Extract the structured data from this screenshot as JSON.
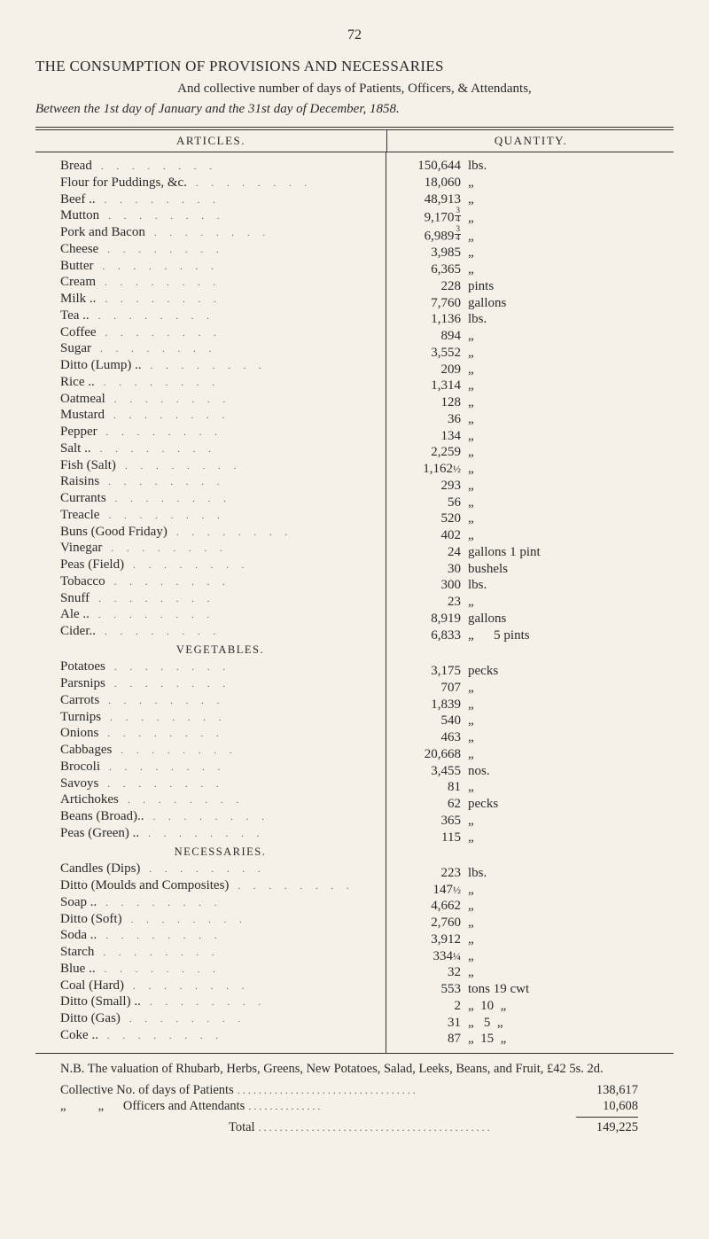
{
  "page_number": "72",
  "title": "THE CONSUMPTION OF PROVISIONS AND NECESSARIES",
  "subtitle1": "And collective number of days of Patients, Officers, & Attendants,",
  "subtitle2": "Between the 1st day of January and the 31st day of December, 1858.",
  "header_articles": "ARTICLES.",
  "header_quantity": "QUANTITY.",
  "sections": [
    {
      "heading": null,
      "rows": [
        {
          "article": "Bread",
          "qty": "150,644",
          "unit": "lbs."
        },
        {
          "article": "Flour for Puddings, &c.",
          "qty": "18,060",
          "unit": "„"
        },
        {
          "article": "Beef ..",
          "qty": "48,913",
          "unit": "„"
        },
        {
          "article": "Mutton",
          "qty": "9,170",
          "qty_frac": "3/4",
          "unit": "„"
        },
        {
          "article": "Pork and Bacon",
          "qty": "6,989",
          "qty_frac": "3/4",
          "unit": "„"
        },
        {
          "article": "Cheese",
          "qty": "3,985",
          "unit": "„"
        },
        {
          "article": "Butter",
          "qty": "6,365",
          "unit": "„"
        },
        {
          "article": "Cream",
          "qty": "228",
          "unit": "pints"
        },
        {
          "article": "Milk ..",
          "qty": "7,760",
          "unit": "gallons"
        },
        {
          "article": "Tea ..",
          "qty": "1,136",
          "unit": "lbs."
        },
        {
          "article": "Coffee",
          "qty": "894",
          "unit": "„"
        },
        {
          "article": "Sugar",
          "qty": "3,552",
          "unit": "„"
        },
        {
          "article": "Ditto (Lump) ..",
          "qty": "209",
          "unit": "„"
        },
        {
          "article": "Rice ..",
          "qty": "1,314",
          "unit": "„"
        },
        {
          "article": "Oatmeal",
          "qty": "128",
          "unit": "„"
        },
        {
          "article": "Mustard",
          "qty": "36",
          "unit": "„"
        },
        {
          "article": "Pepper",
          "qty": "134",
          "unit": "„"
        },
        {
          "article": "Salt ..",
          "qty": "2,259",
          "unit": "„"
        },
        {
          "article": "Fish (Salt)",
          "qty": "1,162",
          "qty_half": "½",
          "unit": "„"
        },
        {
          "article": "Raisins",
          "qty": "293",
          "unit": "„"
        },
        {
          "article": "Currants",
          "qty": "56",
          "unit": "„"
        },
        {
          "article": "Treacle",
          "qty": "520",
          "unit": "„"
        },
        {
          "article": "Buns (Good Friday)",
          "qty": "402",
          "unit": "„"
        },
        {
          "article": "Vinegar",
          "qty": "24",
          "unit": "gallons 1 pint"
        },
        {
          "article": "Peas (Field)",
          "qty": "30",
          "unit": "bushels"
        },
        {
          "article": "Tobacco",
          "qty": "300",
          "unit": "lbs."
        },
        {
          "article": "Snuff",
          "qty": "23",
          "unit": "„"
        },
        {
          "article": "Ale ..",
          "qty": "8,919",
          "unit": "gallons"
        },
        {
          "article": "Cider..",
          "qty": "6,833",
          "unit": "„      5 pints"
        }
      ]
    },
    {
      "heading": "VEGETABLES.",
      "rows": [
        {
          "article": "Potatoes",
          "qty": "3,175",
          "unit": "pecks"
        },
        {
          "article": "Parsnips",
          "qty": "707",
          "unit": "„"
        },
        {
          "article": "Carrots",
          "qty": "1,839",
          "unit": "„"
        },
        {
          "article": "Turnips",
          "qty": "540",
          "unit": "„"
        },
        {
          "article": "Onions",
          "qty": "463",
          "unit": "„"
        },
        {
          "article": "Cabbages",
          "qty": "20,668",
          "unit": "„"
        },
        {
          "article": "Brocoli",
          "qty": "3,455",
          "unit": "nos."
        },
        {
          "article": "Savoys",
          "qty": "81",
          "unit": "„"
        },
        {
          "article": "Artichokes",
          "qty": "62",
          "unit": "pecks"
        },
        {
          "article": "Beans (Broad)..",
          "qty": "365",
          "unit": "„"
        },
        {
          "article": "Peas (Green) ..",
          "qty": "115",
          "unit": "„"
        }
      ]
    },
    {
      "heading": "NECESSARIES.",
      "rows": [
        {
          "article": "Candles (Dips)",
          "qty": "223",
          "unit": "lbs."
        },
        {
          "article": "Ditto (Moulds and Composites)",
          "qty": "147",
          "qty_half": "½",
          "unit": "„"
        },
        {
          "article": "Soap ..",
          "qty": "4,662",
          "unit": "„"
        },
        {
          "article": "Ditto (Soft)",
          "qty": "2,760",
          "unit": "„"
        },
        {
          "article": "Soda ..",
          "qty": "3,912",
          "unit": "„"
        },
        {
          "article": "Starch",
          "qty": "334",
          "qty_half": "¼",
          "unit": "„"
        },
        {
          "article": "Blue ..",
          "qty": "32",
          "unit": "„"
        },
        {
          "article": "Coal (Hard)",
          "qty": "553",
          "unit": "tons 19 cwt"
        },
        {
          "article": "Ditto (Small) ..",
          "qty": "2",
          "unit": "„  10  „"
        },
        {
          "article": "Ditto (Gas)",
          "qty": "31",
          "unit": "„   5  „"
        },
        {
          "article": "Coke ..",
          "qty": "87",
          "unit": "„  15  „"
        }
      ]
    }
  ],
  "nb": "N.B. The valuation of Rhubarb, Herbs, Greens, New Potatoes, Salad, Leeks, Beans, and Fruit, £42 5s. 2d.",
  "collective": {
    "line1_label": "Collective No. of days of Patients",
    "line1_val": "138,617",
    "line2_label": "„          „      Officers and Attendants",
    "line2_val": "10,608",
    "total_label": "Total",
    "total_val": "149,225"
  },
  "colors": {
    "bg": "#f5f1e8",
    "fg": "#2a2a2a",
    "rule": "#333333"
  }
}
